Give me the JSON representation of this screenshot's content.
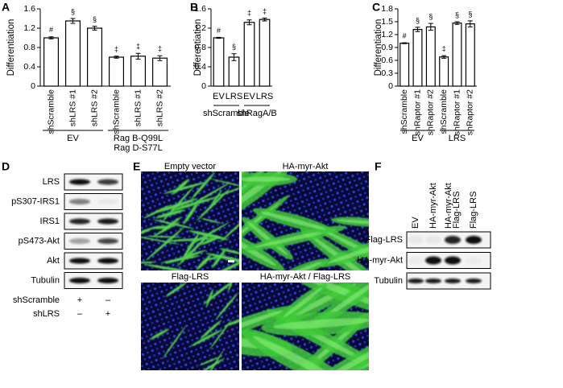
{
  "chart_data": [
    {
      "type": "bar",
      "panel": "A",
      "ylabel": "Differentiation",
      "ylim": [
        0,
        1.6
      ],
      "yticks": [
        0,
        0.4,
        0.8,
        1.2,
        1.6
      ],
      "color": "#ffffff",
      "groups": [
        {
          "label": [
            "EV"
          ],
          "categories": [
            "shScramble",
            "shLRS #1",
            "shLRS #2"
          ],
          "values": [
            1,
            1.35,
            1.2
          ],
          "errors": [
            0.02,
            0.05,
            0.04
          ],
          "annotations": [
            "#",
            "§",
            "§"
          ]
        },
        {
          "label": [
            "Rag B-Q99L",
            "Rag D-S77L"
          ],
          "categories": [
            "shScramble",
            "shLRS #1",
            "shLRS #2"
          ],
          "values": [
            0.6,
            0.62,
            0.58
          ],
          "errors": [
            0.02,
            0.06,
            0.05
          ],
          "annotations": [
            "‡",
            "‡",
            "‡"
          ]
        }
      ]
    },
    {
      "type": "bar",
      "panel": "B",
      "ylabel": "Differentiation",
      "ylim": [
        0,
        1.6
      ],
      "yticks": [
        0,
        0.4,
        0.8,
        1.2,
        1.6
      ],
      "color": "#ffffff",
      "groups": [
        {
          "label": [
            "shScramble"
          ],
          "categories": [
            "EV",
            "LRS"
          ],
          "values": [
            1,
            0.6
          ],
          "errors": [
            0.01,
            0.07
          ],
          "annotations": [
            "#",
            "§"
          ]
        },
        {
          "label": [
            "shRagA/B"
          ],
          "categories": [
            "EV",
            "LRS"
          ],
          "values": [
            1.32,
            1.38
          ],
          "errors": [
            0.05,
            0.03
          ],
          "annotations": [
            "‡",
            "‡"
          ]
        }
      ]
    },
    {
      "type": "bar",
      "panel": "C",
      "ylabel": "Differentiation",
      "ylim": [
        0,
        1.8
      ],
      "yticks": [
        0,
        0.3,
        0.6,
        0.9,
        1.2,
        1.5,
        1.8
      ],
      "color": "#ffffff",
      "groups": [
        {
          "label": [
            "EV"
          ],
          "categories": [
            "shScramble",
            "shRaptor #1",
            "shRaptor #2"
          ],
          "values": [
            1,
            1.32,
            1.38
          ],
          "errors": [
            0.01,
            0.05,
            0.08
          ],
          "annotations": [
            "#",
            "§",
            "§"
          ]
        },
        {
          "label": [
            "LRS"
          ],
          "categories": [
            "shScramble",
            "shRaptor #1",
            "shRaptor #2"
          ],
          "values": [
            0.68,
            1.47,
            1.45
          ],
          "errors": [
            0.03,
            0.03,
            0.07
          ],
          "annotations": [
            "‡",
            "§",
            "§"
          ]
        }
      ]
    }
  ],
  "blot_d": {
    "panel": "D",
    "rows": [
      "LRS",
      "pS307-IRS1",
      "IRS1",
      "pS473-Akt",
      "Akt",
      "Tubulin"
    ],
    "treatments": [
      {
        "label": "shScramble",
        "marks": [
          "+",
          "–"
        ]
      },
      {
        "label": "shLRS",
        "marks": [
          "–",
          "+"
        ]
      }
    ]
  },
  "micrographs": {
    "panel": "E",
    "titles": [
      "Empty vector",
      "HA-myr-Akt",
      "Flag-LRS",
      "HA-myr-Akt / Flag-LRS"
    ]
  },
  "blot_f": {
    "panel": "F",
    "lanes": [
      [
        "EV"
      ],
      [
        "HA-myr-Akt"
      ],
      [
        "HA-myr-Akt",
        "Flag-LRS"
      ],
      [
        "Flag-LRS"
      ]
    ],
    "rows": [
      "Flag-LRS",
      "HA-myr-Akt",
      "Tubulin"
    ]
  }
}
